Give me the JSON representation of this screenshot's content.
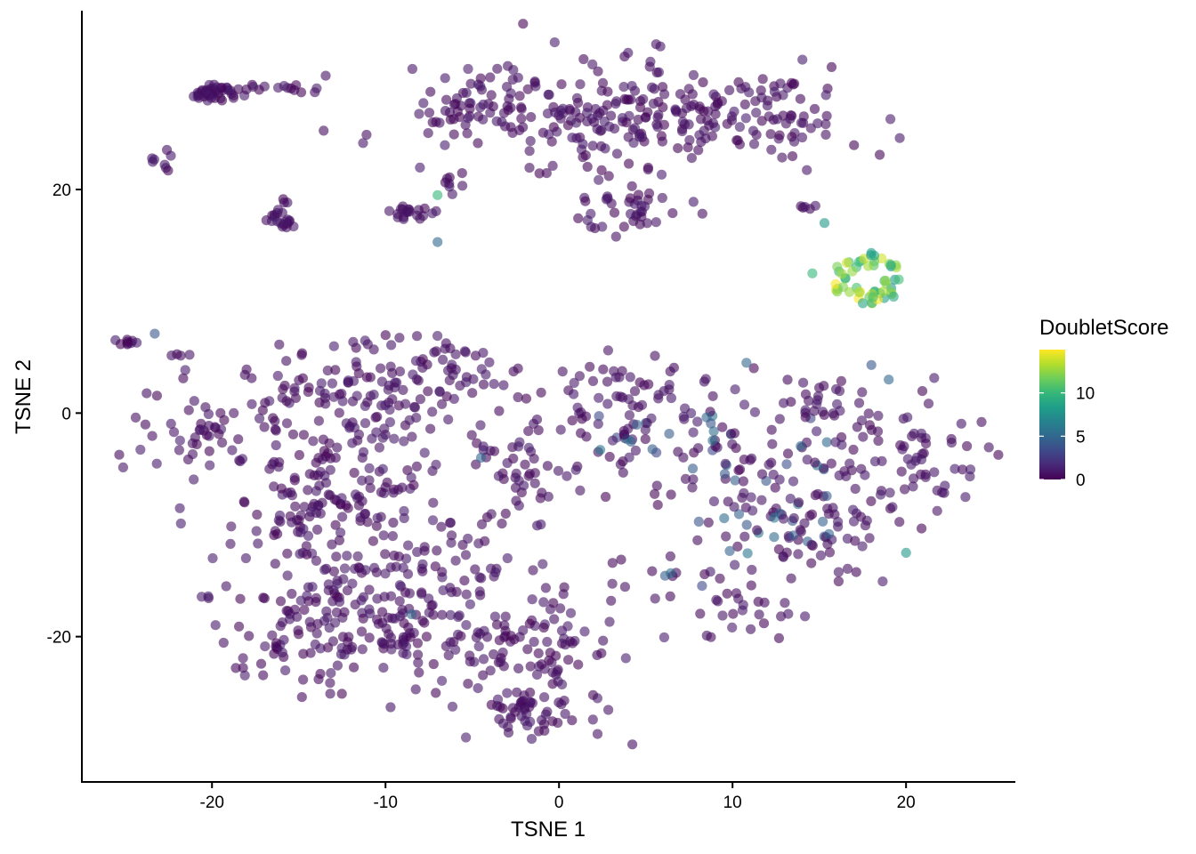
{
  "chart_data": {
    "type": "scatter",
    "title": "",
    "xlabel": "TSNE 1",
    "ylabel": "TSNE 2",
    "xlim": [
      -27.5,
      26.3
    ],
    "ylim": [
      -33,
      36
    ],
    "xticks": [
      -20,
      -10,
      0,
      10,
      20
    ],
    "xtick_labels": [
      "-20",
      "-10",
      "0",
      "10",
      "20"
    ],
    "yticks": [
      -20,
      0,
      20
    ],
    "ytick_labels": [
      "-20",
      "0",
      "20"
    ],
    "grid": false,
    "point_opacity": 0.6,
    "legend": {
      "title": "DoubletScore",
      "position": "right",
      "type": "continuous colorbar",
      "range": [
        0,
        15
      ],
      "ticks": [
        0,
        5,
        10
      ],
      "tick_labels": [
        "0",
        "5",
        "10"
      ],
      "palette": [
        "#440154",
        "#482878",
        "#3E4A89",
        "#31688E",
        "#26828E",
        "#1F9E89",
        "#35B779",
        "#6DCD59",
        "#B4DE2C",
        "#FDE725"
      ]
    },
    "series": [
      {
        "clusters": [
          {
            "center": [
              -19.8,
              28.7
            ],
            "spread": [
              0.6,
              0.4
            ],
            "n": 45
          },
          {
            "center": [
              -16.5,
              29.1
            ],
            "spread": [
              1.5,
              0.2
            ],
            "n": 14
          },
          {
            "center": [
              -22.8,
              22.6
            ],
            "spread": [
              0.3,
              0.6
            ],
            "n": 8
          },
          {
            "center": [
              -16.1,
              17.4
            ],
            "spread": [
              0.5,
              0.6
            ],
            "n": 22
          },
          {
            "center": [
              -8.7,
              18.0
            ],
            "spread": [
              0.7,
              0.4
            ],
            "n": 20
          },
          {
            "center": [
              -24.7,
              6.4
            ],
            "spread": [
              0.5,
              0.2
            ],
            "n": 9
          },
          {
            "center": [
              -22.2,
              5.2
            ],
            "spread": [
              0.3,
              0.1
            ],
            "n": 3
          },
          {
            "center": [
              -6.0,
              20.6
            ],
            "spread": [
              0.5,
              0.5
            ],
            "n": 7
          },
          {
            "center": [
              3.8,
              26.8
            ],
            "spread": [
              6.0,
              2.3
            ],
            "n": 270
          },
          {
            "center": [
              -5.3,
              27.5
            ],
            "spread": [
              1.6,
              0.9
            ],
            "n": 25
          },
          {
            "center": [
              3.5,
              18.2
            ],
            "spread": [
              1.5,
              1.0
            ],
            "n": 40
          },
          {
            "center": [
              13.2,
              26.4
            ],
            "spread": [
              1.5,
              1.5
            ],
            "n": 30
          },
          {
            "center": [
              14.5,
              18.4
            ],
            "spread": [
              0.4,
              0.2
            ],
            "n": 5
          },
          {
            "center": [
              -20.0,
              -2.0
            ],
            "spread": [
              2.0,
              2.5
            ],
            "n": 60
          },
          {
            "center": [
              -12.5,
              0.5
            ],
            "spread": [
              3.5,
              2.8
            ],
            "n": 120
          },
          {
            "center": [
              -7.0,
              4.0
            ],
            "spread": [
              2.5,
              1.8
            ],
            "n": 60
          },
          {
            "center": [
              -13.5,
              -9.0
            ],
            "spread": [
              3.0,
              3.0
            ],
            "n": 120
          },
          {
            "center": [
              -13.0,
              -19.0
            ],
            "spread": [
              3.0,
              3.0
            ],
            "n": 140
          },
          {
            "center": [
              -7.5,
              -14.0
            ],
            "spread": [
              2.5,
              4.0
            ],
            "n": 90
          },
          {
            "center": [
              -2.0,
              -21.0
            ],
            "spread": [
              3.0,
              3.0
            ],
            "n": 120
          },
          {
            "center": [
              -1.5,
              -27.0
            ],
            "spread": [
              1.3,
              1.0
            ],
            "n": 40
          },
          {
            "center": [
              -2.5,
              -5.0
            ],
            "spread": [
              1.8,
              3.5
            ],
            "n": 45
          },
          {
            "center": [
              3.0,
              -2.0
            ],
            "spread": [
              2.5,
              2.5
            ],
            "n": 60
          },
          {
            "center": [
              5.5,
              1.8
            ],
            "spread": [
              3.0,
              1.5
            ],
            "n": 40
          },
          {
            "center": [
              9.0,
              -4.0
            ],
            "spread": [
              2.5,
              2.5
            ],
            "n": 50
          },
          {
            "center": [
              14.0,
              -10.0
            ],
            "spread": [
              3.0,
              3.0
            ],
            "n": 100
          },
          {
            "center": [
              19.5,
              -4.0
            ],
            "spread": [
              3.0,
              3.0
            ],
            "n": 80
          },
          {
            "center": [
              15.0,
              0.5
            ],
            "spread": [
              2.0,
              1.5
            ],
            "n": 30
          },
          {
            "center": [
              11.5,
              -18.0
            ],
            "spread": [
              1.5,
              1.2
            ],
            "n": 15
          },
          {
            "center": [
              8.0,
              -15.0
            ],
            "spread": [
              2.5,
              1.0
            ],
            "n": 20
          },
          {
            "center": [
              -20.6,
              -16.5
            ],
            "spread": [
              0.2,
              0.1
            ],
            "n": 3
          },
          {
            "center": [
              8.5,
              -20.0
            ],
            "spread": [
              0.2,
              0.1
            ],
            "n": 2
          }
        ]
      }
    ],
    "doublet_cluster": {
      "center": [
        17.8,
        12.0
      ],
      "spread": [
        1.4,
        1.5
      ],
      "n": 55,
      "score_peak": 15,
      "score_min": 8
    },
    "moderate_points": [
      {
        "x": -7.0,
        "y": 19.5,
        "score": 10
      },
      {
        "x": -7.0,
        "y": 15.3,
        "score": 5
      },
      {
        "x": -23.3,
        "y": 7.1,
        "score": 4
      },
      {
        "x": 18.0,
        "y": 4.3,
        "score": 4
      },
      {
        "x": 19.0,
        "y": 3.0,
        "score": 5
      },
      {
        "x": 15.3,
        "y": 17.0,
        "score": 8
      },
      {
        "x": 14.6,
        "y": 12.5,
        "score": 10
      },
      {
        "x": 10.8,
        "y": 4.5,
        "score": 5
      },
      {
        "x": 20.0,
        "y": -12.5,
        "score": 8
      },
      {
        "x": -8.5,
        "y": -18.0,
        "score": 5
      },
      {
        "x": -4.5,
        "y": -4.0,
        "score": 5
      }
    ],
    "mid_score_region": {
      "x_range": [
        2,
        16
      ],
      "y_range": [
        -16,
        0
      ],
      "score_range": [
        3,
        6
      ],
      "fraction": 0.25
    }
  }
}
